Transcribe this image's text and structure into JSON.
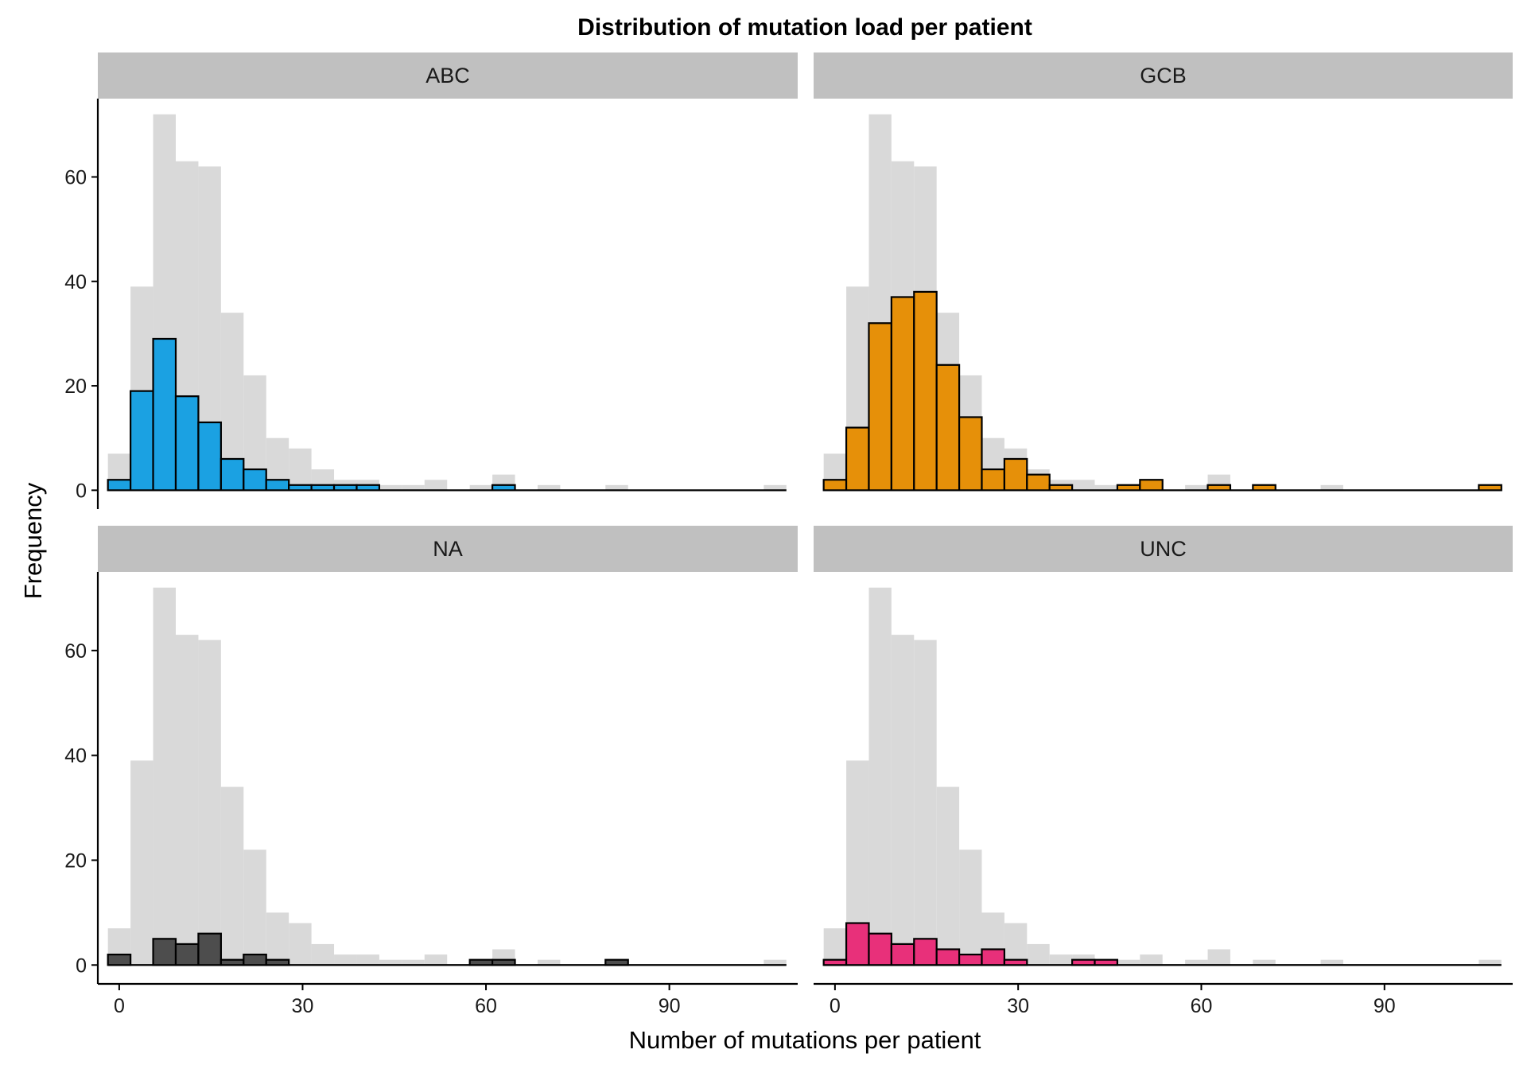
{
  "chart_data": {
    "type": "bar",
    "title": "Distribution of mutation load per patient",
    "xlabel": "Number of mutations per patient",
    "ylabel": "Frequency",
    "xlim": [
      -3.5,
      111
    ],
    "ylim": [
      -3.6,
      75
    ],
    "binwidth": 3.7,
    "x_ticks": [
      0,
      30,
      60,
      90
    ],
    "y_ticks": [
      0,
      20,
      40,
      60
    ],
    "grid": false,
    "layout": "2x2 facets",
    "background_series": {
      "x": [
        0,
        3.7,
        7.4,
        11.1,
        14.8,
        18.5,
        22.2,
        25.9,
        29.6,
        33.3,
        37,
        40.7,
        44.4,
        48.1,
        51.8,
        55.5,
        59.2,
        62.9,
        66.6,
        70.3,
        74,
        77.7,
        81.4,
        85.1,
        88.8,
        92.5,
        96.2,
        99.9,
        103.6,
        107.3
      ],
      "values": [
        7,
        39,
        72,
        63,
        62,
        34,
        22,
        10,
        8,
        4,
        2,
        2,
        1,
        1,
        2,
        0,
        1,
        3,
        0,
        1,
        0,
        0,
        1,
        0,
        0,
        0,
        0,
        0,
        0,
        1
      ],
      "color": "#d9d9d9"
    },
    "facets": [
      {
        "label": "ABC",
        "color": "#1ba1e2",
        "x": [
          0,
          3.7,
          7.4,
          11.1,
          14.8,
          18.5,
          22.2,
          25.9,
          29.6,
          33.3,
          37,
          40.7,
          44.4,
          48.1,
          51.8,
          55.5,
          59.2,
          62.9,
          66.6,
          70.3,
          74,
          77.7,
          81.4,
          85.1,
          88.8,
          92.5,
          96.2,
          99.9,
          103.6,
          107.3
        ],
        "values": [
          2,
          19,
          29,
          18,
          13,
          6,
          4,
          2,
          1,
          1,
          1,
          1,
          0,
          0,
          0,
          0,
          0,
          1,
          0,
          0,
          0,
          0,
          0,
          0,
          0,
          0,
          0,
          0,
          0,
          0
        ]
      },
      {
        "label": "GCB",
        "color": "#e69009",
        "x": [
          0,
          3.7,
          7.4,
          11.1,
          14.8,
          18.5,
          22.2,
          25.9,
          29.6,
          33.3,
          37,
          40.7,
          44.4,
          48.1,
          51.8,
          55.5,
          59.2,
          62.9,
          66.6,
          70.3,
          74,
          77.7,
          81.4,
          85.1,
          88.8,
          92.5,
          96.2,
          99.9,
          103.6,
          107.3
        ],
        "values": [
          2,
          12,
          32,
          37,
          38,
          24,
          14,
          4,
          6,
          3,
          1,
          0,
          0,
          1,
          2,
          0,
          0,
          1,
          0,
          1,
          0,
          0,
          0,
          0,
          0,
          0,
          0,
          0,
          0,
          1
        ]
      },
      {
        "label": "NA",
        "color": "#4d4d4d",
        "x": [
          0,
          3.7,
          7.4,
          11.1,
          14.8,
          18.5,
          22.2,
          25.9,
          29.6,
          33.3,
          37,
          40.7,
          44.4,
          48.1,
          51.8,
          55.5,
          59.2,
          62.9,
          66.6,
          70.3,
          74,
          77.7,
          81.4,
          85.1,
          88.8,
          92.5,
          96.2,
          99.9,
          103.6,
          107.3
        ],
        "values": [
          2,
          0,
          5,
          4,
          6,
          1,
          2,
          1,
          0,
          0,
          0,
          0,
          0,
          0,
          0,
          0,
          1,
          1,
          0,
          0,
          0,
          0,
          1,
          0,
          0,
          0,
          0,
          0,
          0,
          0
        ]
      },
      {
        "label": "UNC",
        "color": "#e8307a",
        "x": [
          0,
          3.7,
          7.4,
          11.1,
          14.8,
          18.5,
          22.2,
          25.9,
          29.6,
          33.3,
          37,
          40.7,
          44.4,
          48.1,
          51.8,
          55.5,
          59.2,
          62.9,
          66.6,
          70.3,
          74,
          77.7,
          81.4,
          85.1,
          88.8,
          92.5,
          96.2,
          99.9,
          103.6,
          107.3
        ],
        "values": [
          1,
          8,
          6,
          4,
          5,
          3,
          2,
          3,
          1,
          0,
          0,
          1,
          1,
          0,
          0,
          0,
          0,
          0,
          0,
          0,
          0,
          0,
          0,
          0,
          0,
          0,
          0,
          0,
          0,
          0
        ]
      }
    ]
  }
}
